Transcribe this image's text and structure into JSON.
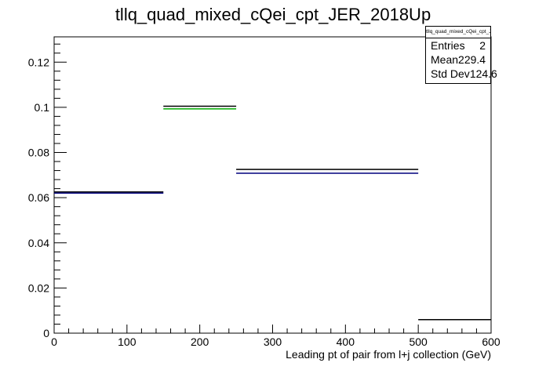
{
  "chart_data": {
    "type": "histogram",
    "title": "tllq_quad_mixed_cQei_cpt_JER_2018Up",
    "xlabel": "Leading pt of pair from l+j collection (GeV)",
    "ylabel": "",
    "xlim": [
      0,
      600
    ],
    "ylim": [
      0,
      0.1312
    ],
    "x_ticks": [
      0,
      100,
      200,
      300,
      400,
      500,
      600
    ],
    "y_ticks": [
      0,
      0.02,
      0.04,
      0.06,
      0.08,
      0.1,
      0.12
    ],
    "y_tick_labels": [
      "0",
      "0.02",
      "0.04",
      "0.06",
      "0.08",
      "0.1",
      "0.12"
    ],
    "series": [
      {
        "color": "#000000",
        "bins": [
          {
            "x0": 0,
            "x1": 150,
            "y": 0.0625
          },
          {
            "x0": 150,
            "x1": 250,
            "y": 0.1005
          },
          {
            "x0": 250,
            "x1": 500,
            "y": 0.0725
          },
          {
            "x0": 500,
            "x1": 600,
            "y": 0.006
          }
        ]
      },
      {
        "color": "#00aa00",
        "bins": [
          {
            "x0": 150,
            "x1": 250,
            "y": 0.0993
          }
        ]
      },
      {
        "color": "#00007f",
        "bins": [
          {
            "x0": 0,
            "x1": 150,
            "y": 0.062
          },
          {
            "x0": 250,
            "x1": 500,
            "y": 0.0708
          }
        ]
      }
    ]
  },
  "stats": {
    "name": "tllq_quad_mixed_cQei_cpt_JER_2018Up",
    "rows": [
      {
        "label": "Entries",
        "value": "2"
      },
      {
        "label": "Mean",
        "value": "229.4"
      },
      {
        "label": "Std Dev",
        "value": "124.6"
      }
    ]
  }
}
